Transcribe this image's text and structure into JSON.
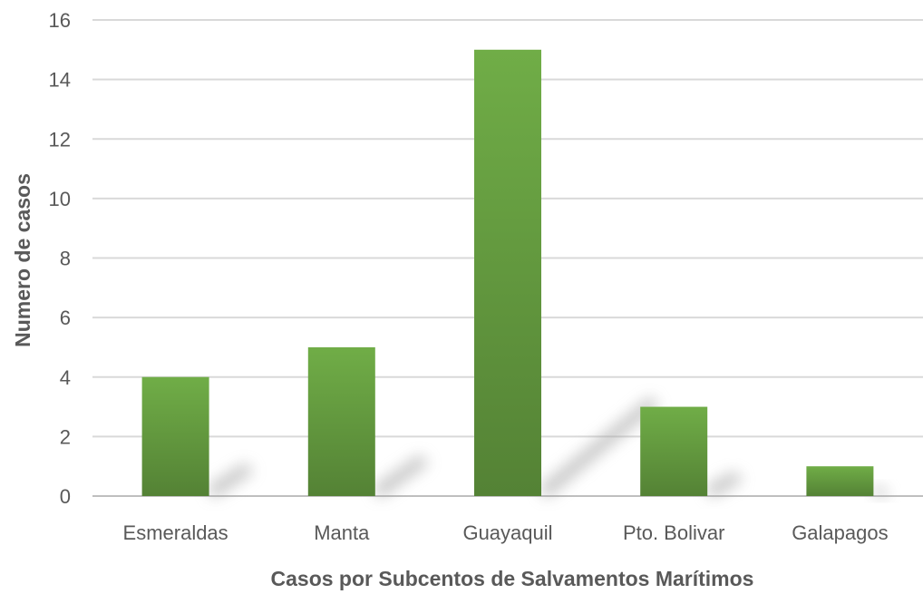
{
  "chart_data": {
    "type": "bar",
    "categories": [
      "Esmeraldas",
      "Manta",
      "Guayaquil",
      "Pto. Bolivar",
      "Galapagos"
    ],
    "values": [
      4,
      5,
      15,
      3,
      1
    ],
    "title": "",
    "xlabel": "Casos por Subcentos de Salvamentos Marítimos",
    "ylabel": "Numero de casos",
    "ylim": [
      0,
      16
    ],
    "yticks": [
      "0",
      "2",
      "4",
      "6",
      "8",
      "10",
      "12",
      "14",
      "16"
    ],
    "grid": true,
    "legend": "none",
    "colors": {
      "bar_top": "#70ad47",
      "bar_bottom": "#548235",
      "grid": "#d9d9d9",
      "text": "#595959"
    }
  }
}
